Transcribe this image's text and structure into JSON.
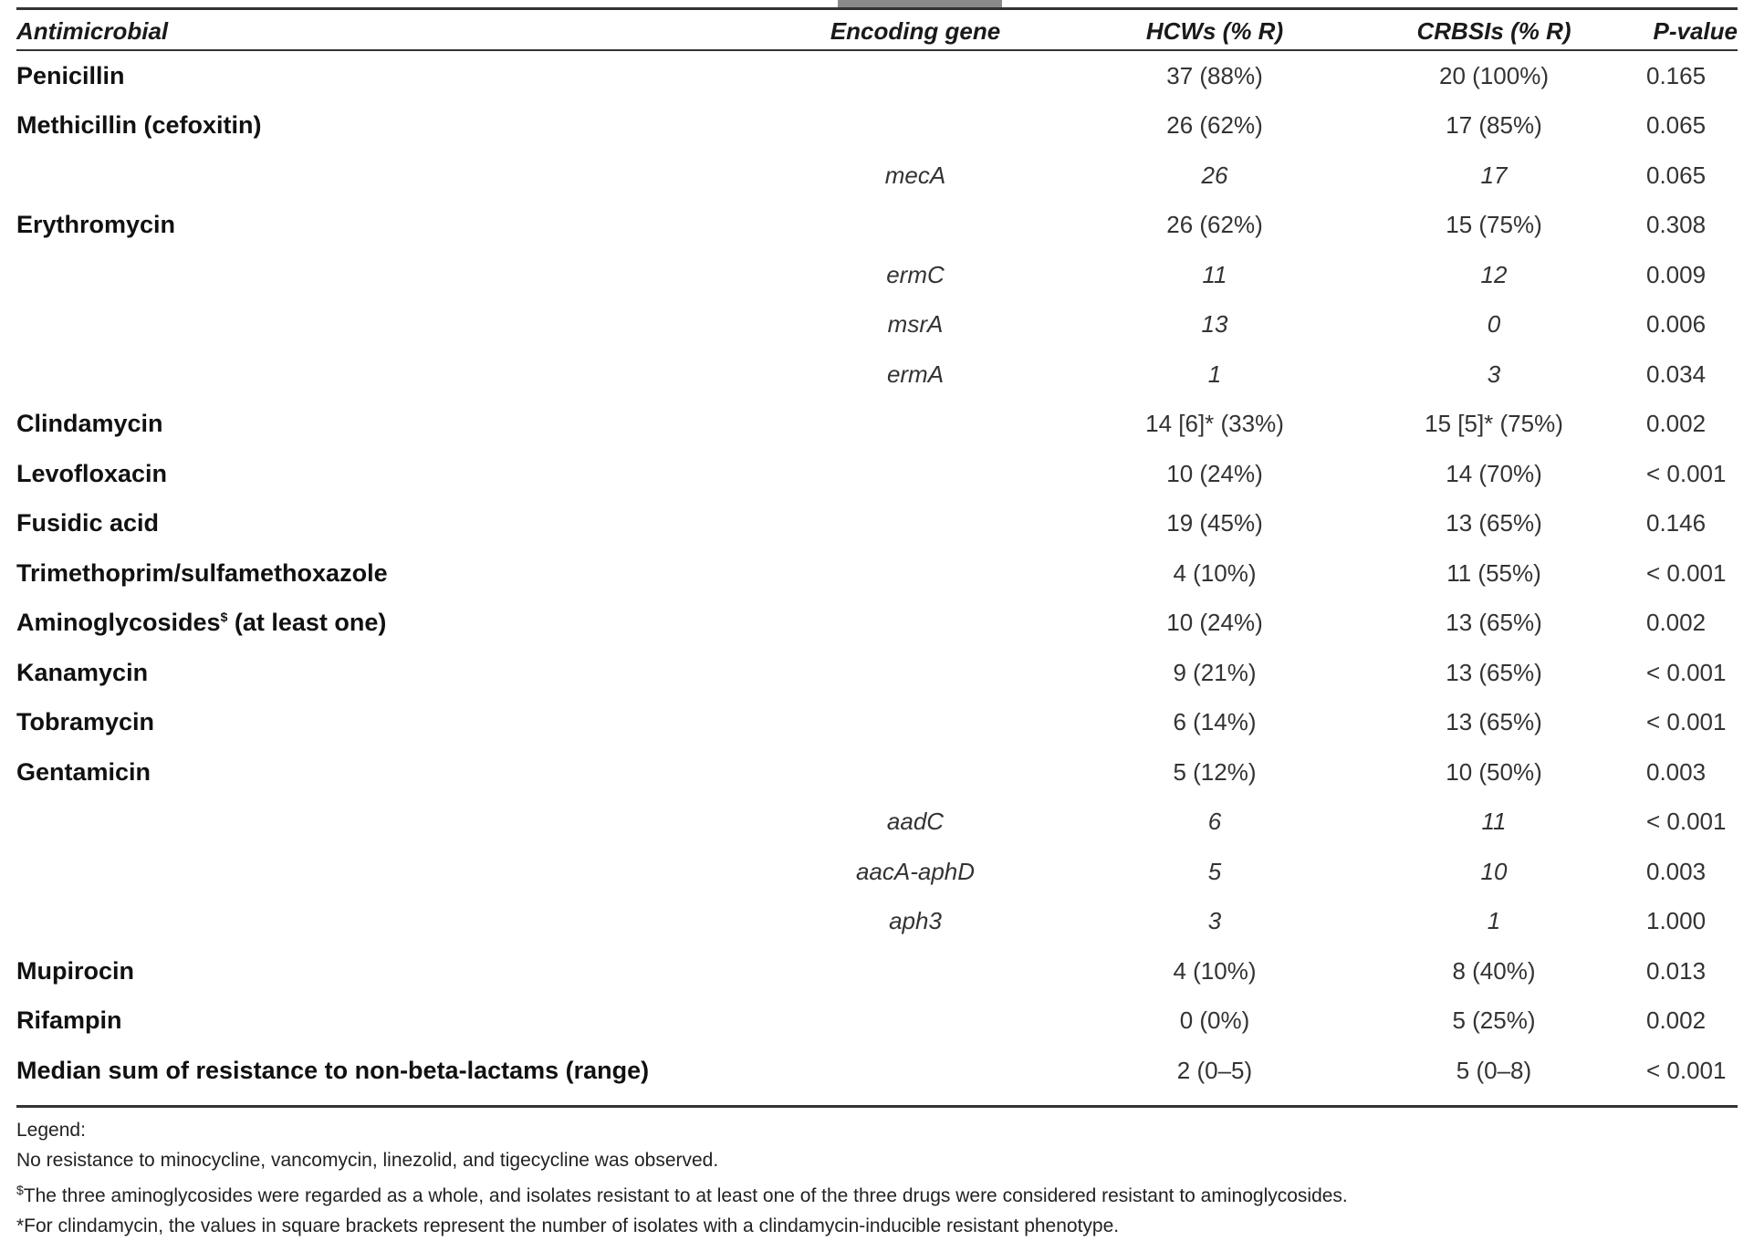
{
  "headers": {
    "antimicrobial": "Antimicrobial",
    "gene": "Encoding gene",
    "hcws": "HCWs (% R)",
    "crbsis": "CRBSIs (% R)",
    "pvalue": "P-value"
  },
  "rows": [
    {
      "name": "Penicillin",
      "gene": "",
      "hcws": "37 (88%)",
      "crbsis": "20 (100%)",
      "p": "0.165"
    },
    {
      "name": "Methicillin (cefoxitin)",
      "gene": "",
      "hcws": "26 (62%)",
      "crbsis": "17 (85%)",
      "p": "0.065"
    },
    {
      "name": "",
      "gene": "mecA",
      "hcws": "26",
      "crbsis": "17",
      "p": "0.065"
    },
    {
      "name": "Erythromycin",
      "gene": "",
      "hcws": "26 (62%)",
      "crbsis": "15 (75%)",
      "p": "0.308"
    },
    {
      "name": "",
      "gene": "ermC",
      "hcws": "11",
      "crbsis": "12",
      "p": "0.009"
    },
    {
      "name": "",
      "gene": "msrA",
      "hcws": "13",
      "crbsis": "0",
      "p": "0.006"
    },
    {
      "name": "",
      "gene": "ermA",
      "hcws": "1",
      "crbsis": "3",
      "p": "0.034"
    },
    {
      "name": "Clindamycin",
      "gene": "",
      "hcws": "14 [6]* (33%)",
      "crbsis": "15 [5]* (75%)",
      "p": "0.002"
    },
    {
      "name": "Levofloxacin",
      "gene": "",
      "hcws": "10 (24%)",
      "crbsis": "14 (70%)",
      "p": "< 0.001"
    },
    {
      "name": "Fusidic acid",
      "gene": "",
      "hcws": "19 (45%)",
      "crbsis": "13 (65%)",
      "p": "0.146"
    },
    {
      "name": "Trimethoprim/sulfamethoxazole",
      "gene": "",
      "hcws": "4 (10%)",
      "crbsis": "11 (55%)",
      "p": "< 0.001"
    },
    {
      "name": "Aminoglycosides",
      "name_sup": "$",
      "name_suffix": " (at least one)",
      "gene": "",
      "hcws": "10 (24%)",
      "crbsis": "13 (65%)",
      "p": "0.002"
    },
    {
      "name": "Kanamycin",
      "gene": "",
      "hcws": "9 (21%)",
      "crbsis": "13 (65%)",
      "p": "< 0.001"
    },
    {
      "name": "Tobramycin",
      "gene": "",
      "hcws": "6 (14%)",
      "crbsis": "13 (65%)",
      "p": "< 0.001"
    },
    {
      "name": "Gentamicin",
      "gene": "",
      "hcws": "5 (12%)",
      "crbsis": "10 (50%)",
      "p": "0.003"
    },
    {
      "name": "",
      "gene": "aadC",
      "hcws": "6",
      "crbsis": "11",
      "p": "< 0.001"
    },
    {
      "name": "",
      "gene": "aacA-aphD",
      "hcws": "5",
      "crbsis": "10",
      "p": "0.003"
    },
    {
      "name": "",
      "gene": "aph3",
      "hcws": "3",
      "crbsis": "1",
      "p": "1.000"
    },
    {
      "name": "Mupirocin",
      "gene": "",
      "hcws": "4 (10%)",
      "crbsis": "8 (40%)",
      "p": "0.013"
    },
    {
      "name": "Rifampin",
      "gene": "",
      "hcws": "0 (0%)",
      "crbsis": "5 (25%)",
      "p": "0.002"
    },
    {
      "name": "Median sum of resistance to non-beta-lactams (range)",
      "gene": "",
      "hcws": "2 (0–5)",
      "crbsis": "5 (0–8)",
      "p": "< 0.001"
    }
  ],
  "legend": {
    "title": "Legend:",
    "line1": "No resistance to minocycline, vancomycin, linezolid, and tigecycline was observed.",
    "line2_mark": "$",
    "line2": "The three aminoglycosides were regarded as a whole, and isolates resistant to at least one of the three drugs were considered resistant to aminoglycosides.",
    "line3": "*For clindamycin, the values in square brackets represent the number of isolates with a clindamycin-inducible resistant phenotype."
  }
}
